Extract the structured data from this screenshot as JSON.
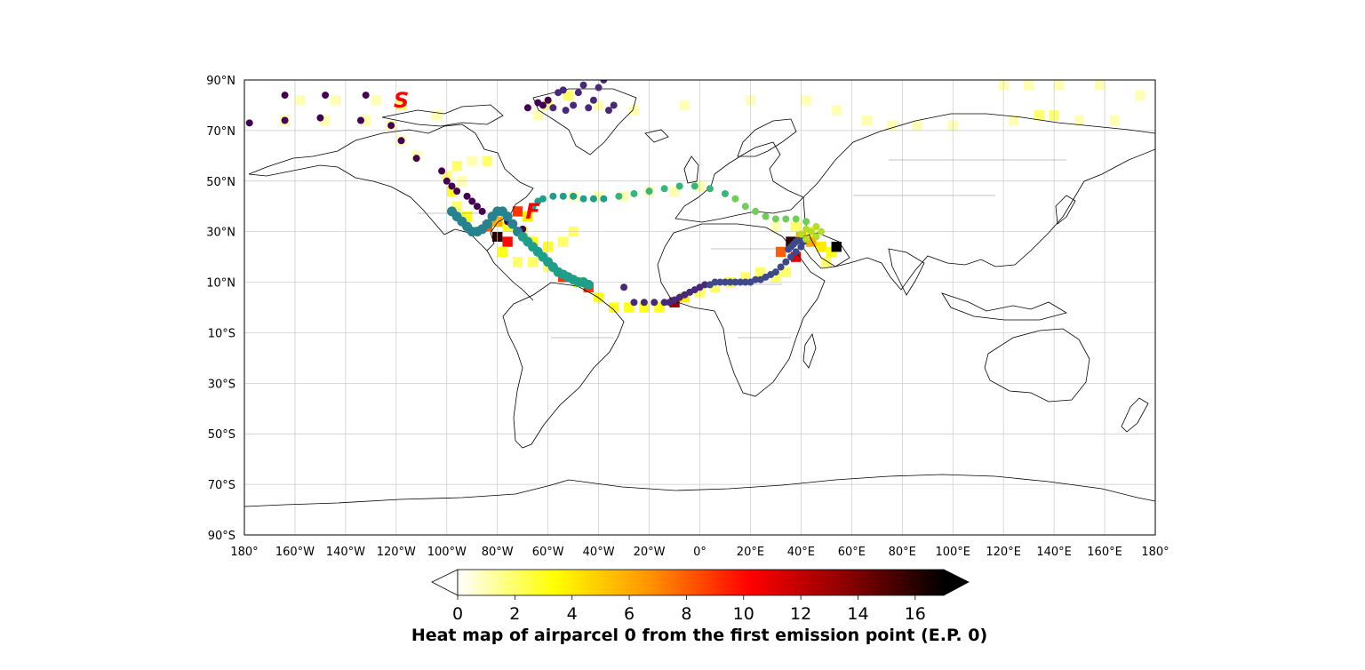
{
  "map": {
    "projection": "PlateCarree",
    "lon_range": [
      -180,
      180
    ],
    "lat_range": [
      -90,
      90
    ],
    "gridlines": true,
    "lat_ticks": [
      {
        "value": 90,
        "label": "90°N"
      },
      {
        "value": 70,
        "label": "70°N"
      },
      {
        "value": 50,
        "label": "50°N"
      },
      {
        "value": 30,
        "label": "30°N"
      },
      {
        "value": 10,
        "label": "10°N"
      },
      {
        "value": -10,
        "label": "10°S"
      },
      {
        "value": -30,
        "label": "30°S"
      },
      {
        "value": -50,
        "label": "50°S"
      },
      {
        "value": -70,
        "label": "70°S"
      },
      {
        "value": -90,
        "label": "90°S"
      }
    ],
    "lon_ticks": [
      {
        "value": -180,
        "label": "180°"
      },
      {
        "value": -160,
        "label": "160°W"
      },
      {
        "value": -140,
        "label": "140°W"
      },
      {
        "value": -120,
        "label": "120°W"
      },
      {
        "value": -100,
        "label": "100°W"
      },
      {
        "value": -80,
        "label": "80°W"
      },
      {
        "value": -60,
        "label": "60°W"
      },
      {
        "value": -40,
        "label": "40°W"
      },
      {
        "value": -20,
        "label": "20°W"
      },
      {
        "value": 0,
        "label": "0°"
      },
      {
        "value": 20,
        "label": "20°E"
      },
      {
        "value": 40,
        "label": "40°E"
      },
      {
        "value": 60,
        "label": "60°E"
      },
      {
        "value": 80,
        "label": "80°E"
      },
      {
        "value": 100,
        "label": "100°E"
      },
      {
        "value": 120,
        "label": "120°E"
      },
      {
        "value": 140,
        "label": "140°E"
      },
      {
        "value": 160,
        "label": "160°E"
      },
      {
        "value": 180,
        "label": "180°"
      }
    ],
    "markers": [
      {
        "label": "S",
        "lon": -118,
        "lat": 82,
        "color": "#ff0000"
      },
      {
        "label": "F",
        "lon": -66,
        "lat": 38,
        "color": "#ff0000"
      }
    ],
    "land_color": "#ffffff",
    "coast_color": "#000000"
  },
  "colorbar": {
    "label": "Heat map of airparcel 0 from the first emission point (E.P. 0)",
    "colormap": "hot_r",
    "range": [
      0,
      17
    ],
    "extend": "both",
    "ticks": [
      {
        "value": 0,
        "label": "0"
      },
      {
        "value": 2,
        "label": "2"
      },
      {
        "value": 4,
        "label": "4"
      },
      {
        "value": 6,
        "label": "6"
      },
      {
        "value": 8,
        "label": "8"
      },
      {
        "value": 10,
        "label": "10"
      },
      {
        "value": 12,
        "label": "12"
      },
      {
        "value": 14,
        "label": "14"
      },
      {
        "value": 16,
        "label": "16"
      }
    ],
    "stops": [
      "#ffffff",
      "#ffff00",
      "#ff9000",
      "#ff0000",
      "#8b0000",
      "#000000"
    ]
  },
  "chart_data": {
    "type": "heatmap",
    "title": "",
    "xlabel": "",
    "ylabel": "",
    "xlim": [
      -180,
      180
    ],
    "ylim": [
      -90,
      90
    ],
    "colorbar_label": "Heat map of airparcel 0 from the first emission point (E.P. 0)",
    "cells_lon_lat_value": [
      [
        -158,
        82,
        1
      ],
      [
        -144,
        82,
        1
      ],
      [
        -128,
        82,
        1
      ],
      [
        -118,
        80,
        2
      ],
      [
        -104,
        76,
        1
      ],
      [
        -164,
        74,
        1
      ],
      [
        -148,
        74,
        1
      ],
      [
        -132,
        74,
        1
      ],
      [
        -122,
        72,
        1
      ],
      [
        -118,
        66,
        1
      ],
      [
        -112,
        60,
        1
      ],
      [
        -96,
        56,
        2
      ],
      [
        -90,
        58,
        1
      ],
      [
        -84,
        58,
        2
      ],
      [
        -100,
        52,
        2
      ],
      [
        -94,
        50,
        1
      ],
      [
        -98,
        46,
        3
      ],
      [
        -96,
        40,
        2
      ],
      [
        -92,
        36,
        3
      ],
      [
        -84,
        32,
        8
      ],
      [
        -80,
        34,
        6
      ],
      [
        -76,
        32,
        3
      ],
      [
        -72,
        38,
        9
      ],
      [
        -68,
        36,
        4
      ],
      [
        -80,
        28,
        16
      ],
      [
        -76,
        26,
        10
      ],
      [
        -70,
        30,
        3
      ],
      [
        -66,
        26,
        3
      ],
      [
        -60,
        24,
        3
      ],
      [
        -54,
        26,
        2
      ],
      [
        -50,
        30,
        2
      ],
      [
        -78,
        22,
        3
      ],
      [
        -72,
        18,
        2
      ],
      [
        -66,
        18,
        2
      ],
      [
        -60,
        16,
        2
      ],
      [
        -54,
        12,
        9
      ],
      [
        -48,
        10,
        4
      ],
      [
        -44,
        8,
        9
      ],
      [
        -40,
        4,
        3
      ],
      [
        -34,
        0,
        3
      ],
      [
        -28,
        0,
        3
      ],
      [
        -22,
        0,
        3
      ],
      [
        -16,
        0,
        3
      ],
      [
        -10,
        2,
        13
      ],
      [
        -6,
        4,
        4
      ],
      [
        0,
        6,
        2
      ],
      [
        6,
        8,
        2
      ],
      [
        12,
        10,
        2
      ],
      [
        18,
        12,
        2
      ],
      [
        24,
        14,
        2
      ],
      [
        30,
        12,
        2
      ],
      [
        34,
        14,
        2
      ],
      [
        32,
        22,
        8
      ],
      [
        38,
        20,
        11
      ],
      [
        36,
        26,
        16
      ],
      [
        40,
        28,
        6
      ],
      [
        44,
        26,
        6
      ],
      [
        48,
        24,
        4
      ],
      [
        52,
        22,
        3
      ],
      [
        50,
        18,
        2
      ],
      [
        44,
        30,
        3
      ],
      [
        38,
        32,
        2
      ],
      [
        30,
        32,
        1
      ],
      [
        54,
        24,
        17
      ],
      [
        -50,
        44,
        1
      ],
      [
        -40,
        44,
        1
      ],
      [
        -30,
        44,
        1
      ],
      [
        -20,
        46,
        1
      ],
      [
        -10,
        46,
        1
      ],
      [
        0,
        48,
        1
      ],
      [
        20,
        82,
        1
      ],
      [
        42,
        82,
        1
      ],
      [
        54,
        78,
        1
      ],
      [
        66,
        74,
        1
      ],
      [
        76,
        72,
        1
      ],
      [
        86,
        72,
        1
      ],
      [
        100,
        72,
        1
      ],
      [
        124,
        74,
        1
      ],
      [
        134,
        76,
        2
      ],
      [
        140,
        76,
        2
      ],
      [
        150,
        74,
        1
      ],
      [
        164,
        74,
        1
      ],
      [
        120,
        88,
        1
      ],
      [
        130,
        88,
        1
      ],
      [
        142,
        88,
        1
      ],
      [
        158,
        88,
        1
      ],
      [
        174,
        84,
        1
      ],
      [
        -60,
        80,
        2
      ],
      [
        -52,
        84,
        2
      ],
      [
        -40,
        80,
        1
      ],
      [
        -26,
        78,
        1
      ],
      [
        -6,
        80,
        1
      ],
      [
        -64,
        76,
        1
      ]
    ],
    "series": [
      {
        "x": [
          -178,
          -164,
          -164,
          -150,
          -148,
          -134,
          -132,
          -122,
          -118,
          -112,
          -102,
          -100,
          -98,
          -96,
          -92,
          -90,
          -88,
          -86,
          -82,
          -76,
          -74,
          -70,
          -68,
          -64,
          -62,
          -60,
          -58,
          -56,
          -54,
          -53,
          -50,
          -48,
          -46,
          -44,
          -42,
          -40,
          -38,
          -36,
          -34,
          -30,
          -26,
          -22,
          -18,
          -14,
          -12,
          -10,
          -8,
          -6,
          -4,
          -2,
          0,
          2,
          4,
          6,
          8,
          10,
          12,
          14,
          16,
          18,
          20,
          22,
          24,
          26,
          28,
          30,
          32,
          34,
          36,
          38,
          40,
          41,
          40,
          38,
          37,
          36,
          35
        ],
        "y": [
          73,
          84,
          74,
          75,
          84,
          74,
          84,
          72,
          66,
          59,
          54,
          50,
          48,
          46,
          44,
          42,
          40,
          38,
          36,
          34,
          33,
          31,
          79,
          81,
          80,
          82,
          79,
          85,
          86,
          78,
          80,
          85,
          88,
          79,
          82,
          87,
          90,
          78,
          80,
          8,
          2,
          2,
          2,
          2,
          2,
          3,
          4,
          5,
          6,
          7,
          8,
          9,
          9,
          10,
          10,
          10,
          10,
          10,
          10,
          10,
          10,
          11,
          11,
          12,
          13,
          14,
          16,
          18,
          20,
          22,
          24,
          26,
          27,
          26,
          25,
          24,
          23
        ],
        "color_by": "time"
      },
      {
        "x": [
          -98,
          -96,
          -94,
          -92,
          -90,
          -88,
          -86,
          -84,
          -82,
          -80,
          -78,
          -76,
          -74,
          -72,
          -70,
          -68,
          -66,
          -64,
          -62,
          -60,
          -58,
          -56,
          -54,
          -52,
          -50,
          -48,
          -46,
          -44
        ],
        "y": [
          38,
          36,
          34,
          32,
          30,
          30,
          31,
          33,
          36,
          38,
          38,
          36,
          33,
          30,
          28,
          26,
          24,
          22,
          20,
          18,
          16,
          14,
          13,
          12,
          11,
          10,
          10,
          9
        ],
        "color_by": "time"
      },
      {
        "x": [
          -66,
          -64,
          -62,
          -58,
          -54,
          -50,
          -46,
          -42,
          -38,
          -32,
          -26,
          -20,
          -14,
          -8,
          -2,
          4,
          10,
          14,
          18,
          22,
          26,
          30,
          34,
          38,
          42,
          46,
          48,
          46,
          42,
          40,
          42,
          44,
          46
        ],
        "y": [
          40,
          42,
          43,
          44,
          44,
          44,
          43,
          43,
          43,
          44,
          45,
          46,
          47,
          48,
          48,
          47,
          45,
          43,
          40,
          38,
          36,
          35,
          35,
          35,
          34,
          32,
          30,
          28,
          27,
          29,
          31,
          30,
          28
        ],
        "color_by": "time"
      }
    ]
  }
}
